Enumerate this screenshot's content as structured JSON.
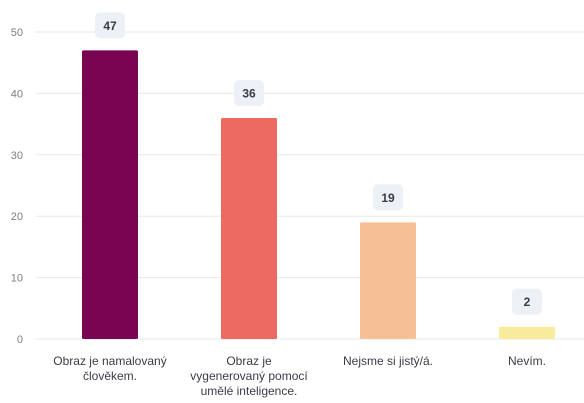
{
  "chart_data": {
    "type": "bar",
    "categories": [
      [
        "Obraz je namalovaný",
        "člověkem."
      ],
      [
        "Obraz je",
        "vygenerovaný pomocí",
        "umělé inteligence."
      ],
      [
        "Nejsme si jistý/á."
      ],
      [
        "Nevím."
      ]
    ],
    "values": [
      47,
      36,
      19,
      2
    ],
    "data_labels": [
      "47",
      "36",
      "19",
      "2"
    ],
    "colors": [
      "#790552",
      "#ec6a61",
      "#f7bf95",
      "#f8ec9b"
    ],
    "ylim": [
      0,
      50
    ],
    "yticks": [
      0,
      10,
      20,
      30,
      40,
      50
    ],
    "ytick_labels": [
      "0",
      "10",
      "20",
      "30",
      "40",
      "50"
    ],
    "title": "",
    "xlabel": "",
    "ylabel": "",
    "grid": true,
    "legend": "none"
  },
  "style": {
    "grid_color": "#e6e8ee",
    "tick_text_color": "#7d7f89",
    "category_text_color": "#3a3c45",
    "label_bubble_fill": "#edf0f4",
    "label_text_color": "#3a3c45"
  }
}
